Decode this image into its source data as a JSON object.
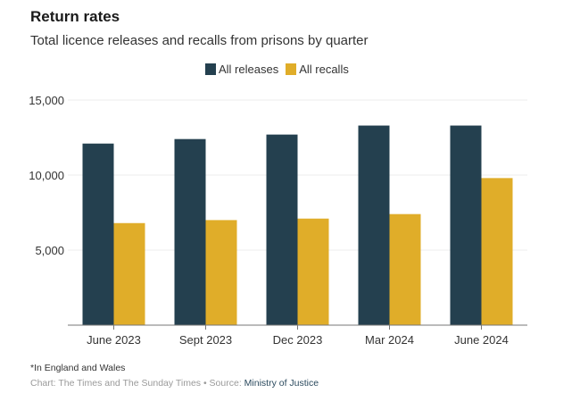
{
  "header": {
    "title": "Return rates",
    "subtitle": "Total licence releases and recalls from prisons by quarter"
  },
  "colors": {
    "releases": "#24404f",
    "recalls": "#e0ad29",
    "grid": "#ececec",
    "axis": "#777777"
  },
  "chart_data": {
    "type": "bar",
    "title": "Return rates",
    "subtitle": "Total licence releases and recalls from prisons by quarter",
    "xlabel": "",
    "ylabel": "",
    "categories": [
      "June 2023",
      "Sept 2023",
      "Dec 2023",
      "Mar 2024",
      "June 2024"
    ],
    "series": [
      {
        "name": "All releases",
        "values": [
          12100,
          12400,
          12700,
          13300,
          13300
        ]
      },
      {
        "name": "All recalls",
        "values": [
          6800,
          7000,
          7100,
          7400,
          9800
        ]
      }
    ],
    "ylim": [
      0,
      15000
    ],
    "yticks": [
      5000,
      10000,
      15000
    ],
    "ytick_labels": [
      "5,000",
      "10,000",
      "15,000"
    ],
    "grid": true,
    "legend": "top-center"
  },
  "footer": {
    "note": "*In England and Wales",
    "credit_prefix": "Chart: The Times and The Sunday Times • Source: ",
    "source": "Ministry of Justice"
  }
}
